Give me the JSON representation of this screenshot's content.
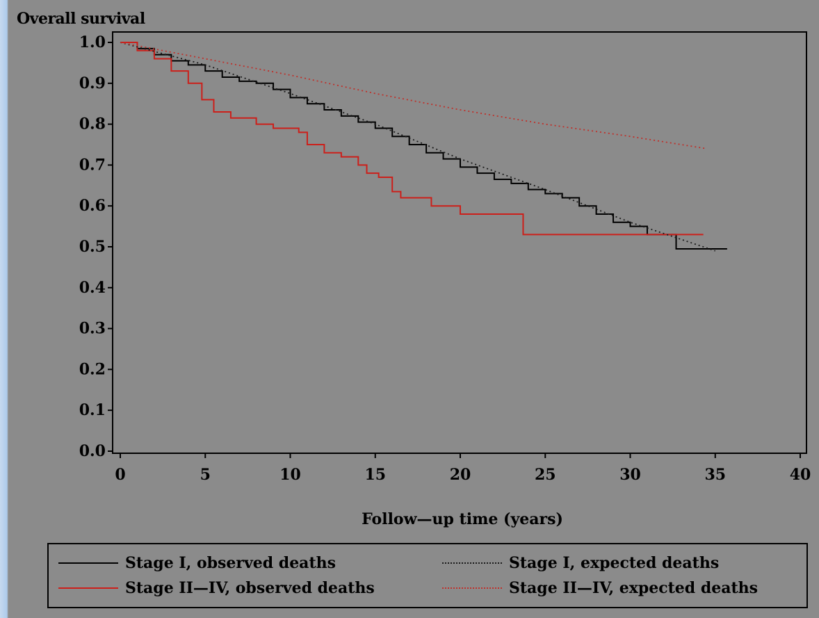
{
  "chart_data": {
    "type": "line",
    "ylabel": "Overall survival",
    "xlabel": "Follow—up time (years)",
    "xlim": [
      0,
      40
    ],
    "ylim": [
      0.0,
      1.0
    ],
    "x_ticks": [
      "0",
      "5",
      "10",
      "15",
      "20",
      "25",
      "30",
      "35",
      "40"
    ],
    "y_ticks": [
      "0.0",
      "0.1",
      "0.2",
      "0.3",
      "0.4",
      "0.5",
      "0.6",
      "0.7",
      "0.8",
      "0.9",
      "1.0"
    ],
    "grid": false,
    "legend_position": "bottom",
    "series": [
      {
        "name": "Stage I, observed deaths",
        "color": "#000000",
        "style": "step-solid",
        "points": [
          [
            0,
            1.0
          ],
          [
            1,
            0.985
          ],
          [
            2,
            0.97
          ],
          [
            3,
            0.955
          ],
          [
            4,
            0.945
          ],
          [
            5,
            0.93
          ],
          [
            6,
            0.915
          ],
          [
            7,
            0.905
          ],
          [
            8,
            0.9
          ],
          [
            9,
            0.885
          ],
          [
            10,
            0.865
          ],
          [
            11,
            0.85
          ],
          [
            12,
            0.835
          ],
          [
            13,
            0.82
          ],
          [
            14,
            0.805
          ],
          [
            15,
            0.79
          ],
          [
            16,
            0.77
          ],
          [
            17,
            0.75
          ],
          [
            18,
            0.73
          ],
          [
            19,
            0.715
          ],
          [
            20,
            0.695
          ],
          [
            21,
            0.68
          ],
          [
            22,
            0.665
          ],
          [
            23,
            0.655
          ],
          [
            24,
            0.64
          ],
          [
            25,
            0.63
          ],
          [
            26,
            0.62
          ],
          [
            27,
            0.6
          ],
          [
            28,
            0.58
          ],
          [
            29,
            0.56
          ],
          [
            30,
            0.55
          ],
          [
            31,
            0.55
          ],
          [
            31,
            0.53
          ],
          [
            32.7,
            0.53
          ],
          [
            32.7,
            0.495
          ],
          [
            35.7,
            0.495
          ]
        ]
      },
      {
        "name": "Stage II—IV, observed deaths",
        "color": "#cc1f1a",
        "style": "step-solid",
        "points": [
          [
            0,
            1.0
          ],
          [
            1,
            0.98
          ],
          [
            2,
            0.96
          ],
          [
            3,
            0.93
          ],
          [
            4,
            0.9
          ],
          [
            4.8,
            0.86
          ],
          [
            5.5,
            0.83
          ],
          [
            6.5,
            0.815
          ],
          [
            8,
            0.8
          ],
          [
            9,
            0.79
          ],
          [
            10.5,
            0.78
          ],
          [
            11,
            0.75
          ],
          [
            12,
            0.73
          ],
          [
            13,
            0.72
          ],
          [
            14,
            0.7
          ],
          [
            14.5,
            0.68
          ],
          [
            15.2,
            0.67
          ],
          [
            16,
            0.635
          ],
          [
            16.5,
            0.62
          ],
          [
            18,
            0.62
          ],
          [
            18.3,
            0.6
          ],
          [
            20,
            0.58
          ],
          [
            23.7,
            0.58
          ],
          [
            23.7,
            0.53
          ],
          [
            34.3,
            0.53
          ]
        ]
      },
      {
        "name": "Stage I, expected deaths",
        "color": "#1a1a1a",
        "style": "dotted",
        "points": [
          [
            0,
            1.0
          ],
          [
            5,
            0.945
          ],
          [
            10,
            0.875
          ],
          [
            15,
            0.8
          ],
          [
            20,
            0.715
          ],
          [
            25,
            0.64
          ],
          [
            30,
            0.56
          ],
          [
            35,
            0.49
          ]
        ]
      },
      {
        "name": "Stage II—IV, expected deaths",
        "color": "#c0302a",
        "style": "dotted",
        "points": [
          [
            0,
            1.0
          ],
          [
            5,
            0.96
          ],
          [
            10,
            0.92
          ],
          [
            15,
            0.875
          ],
          [
            20,
            0.835
          ],
          [
            25,
            0.8
          ],
          [
            30,
            0.77
          ],
          [
            34.5,
            0.74
          ]
        ]
      }
    ]
  }
}
